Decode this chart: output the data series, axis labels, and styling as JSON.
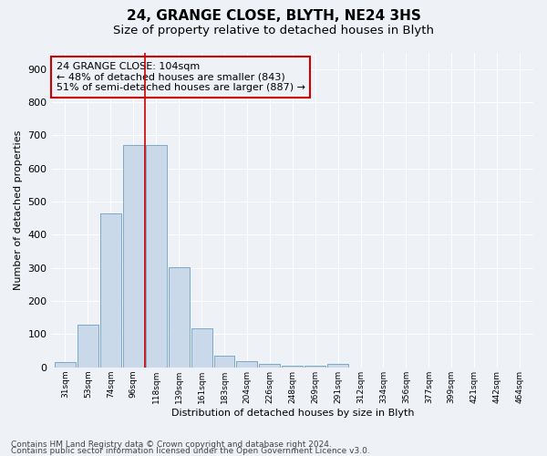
{
  "title1": "24, GRANGE CLOSE, BLYTH, NE24 3HS",
  "title2": "Size of property relative to detached houses in Blyth",
  "xlabel": "Distribution of detached houses by size in Blyth",
  "ylabel": "Number of detached properties",
  "footnote1": "Contains HM Land Registry data © Crown copyright and database right 2024.",
  "footnote2": "Contains public sector information licensed under the Open Government Licence v3.0.",
  "annotation_line1": "24 GRANGE CLOSE: 104sqm",
  "annotation_line2": "← 48% of detached houses are smaller (843)",
  "annotation_line3": "51% of semi-detached houses are larger (887) →",
  "bar_labels": [
    "31sqm",
    "53sqm",
    "74sqm",
    "96sqm",
    "118sqm",
    "139sqm",
    "161sqm",
    "183sqm",
    "204sqm",
    "226sqm",
    "248sqm",
    "269sqm",
    "291sqm",
    "312sqm",
    "334sqm",
    "356sqm",
    "377sqm",
    "399sqm",
    "421sqm",
    "442sqm",
    "464sqm"
  ],
  "bar_values": [
    17,
    128,
    465,
    672,
    672,
    302,
    118,
    35,
    18,
    10,
    5,
    5,
    10,
    0,
    0,
    0,
    0,
    0,
    0,
    0,
    0
  ],
  "bar_color": "#c9d9ea",
  "bar_edge_color": "#7aaac8",
  "vline_x": 3.5,
  "vline_color": "#cc0000",
  "ylim": [
    0,
    950
  ],
  "yticks": [
    0,
    100,
    200,
    300,
    400,
    500,
    600,
    700,
    800,
    900
  ],
  "background_color": "#eef2f7",
  "grid_color": "#ffffff",
  "title1_fontsize": 11,
  "title2_fontsize": 9.5,
  "annotation_fontsize": 8,
  "footnote_fontsize": 6.5
}
